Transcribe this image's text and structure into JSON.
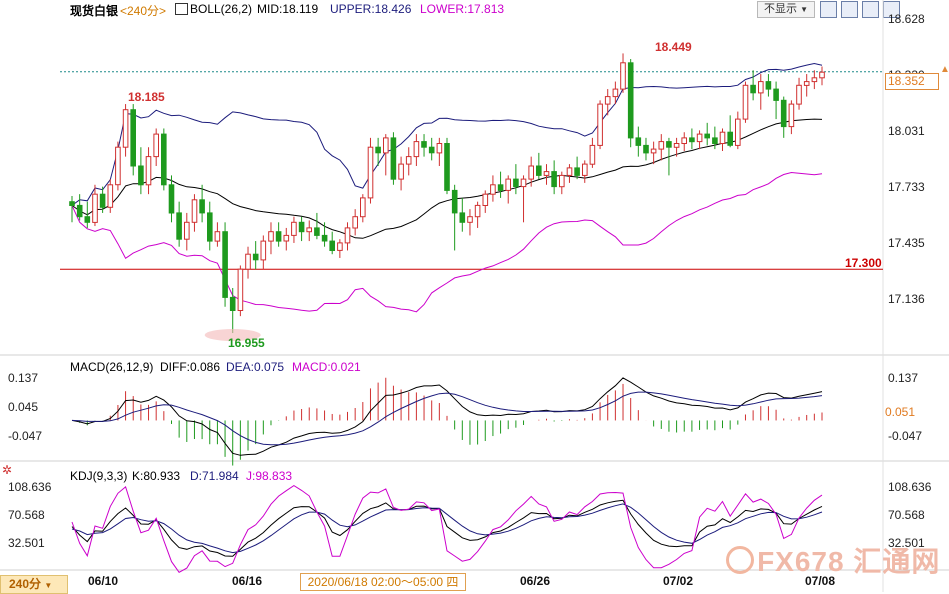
{
  "header": {
    "symbol": "现货白银",
    "period": "<240分>",
    "boll": "BOLL(26,2)",
    "mid": "MID:18.119",
    "upper": "UPPER:18.426",
    "lower": "LOWER:17.813",
    "dropdown": "不显示",
    "dropdown_arrow": "▼"
  },
  "price_axis": [
    "18.628",
    "18.330",
    "18.031",
    "17.733",
    "17.435",
    "17.136"
  ],
  "price_current": "18.352",
  "price_annotations": {
    "high1": "18.185",
    "high2": "18.449",
    "low": "16.955",
    "level": "17.300"
  },
  "macd_header": {
    "name": "MACD(26,12,9)",
    "diff": "DIFF:0.086",
    "dea": "DEA:0.075",
    "macd": "MACD:0.021"
  },
  "macd_axis": [
    "0.137",
    "0.045",
    "-0.047"
  ],
  "macd_current": "0.051",
  "kdj_header": {
    "name": "KDJ(9,3,3)",
    "k": "K:80.933",
    "d": "D:71.984",
    "j": "J:98.833"
  },
  "kdj_axis": [
    "108.636",
    "70.568",
    "32.501"
  ],
  "footer": {
    "period_tab": "240分",
    "dates": [
      "06/10",
      "06/16",
      "06/26",
      "07/02",
      "07/08"
    ],
    "cursor_time": "2020/06/18 02:00～05:00 四",
    "watermark": "FX678 汇通网"
  },
  "colors": {
    "up": "#d03030",
    "down": "#1e9a1e",
    "mid": "#000000",
    "upper": "#1c1c7c",
    "lower": "#cc00cc",
    "level": "#cc0000"
  },
  "chart_data": {
    "type": "candlestick",
    "title": "现货白银",
    "candles": [
      [
        17.66,
        17.69,
        17.55,
        17.64
      ],
      [
        17.64,
        17.7,
        17.56,
        17.58
      ],
      [
        17.58,
        17.66,
        17.52,
        17.55
      ],
      [
        17.55,
        17.75,
        17.53,
        17.7
      ],
      [
        17.7,
        17.74,
        17.6,
        17.63
      ],
      [
        17.63,
        17.78,
        17.6,
        17.75
      ],
      [
        17.75,
        17.98,
        17.72,
        17.95
      ],
      [
        17.95,
        18.18,
        17.9,
        18.15
      ],
      [
        18.15,
        18.18,
        17.8,
        17.85
      ],
      [
        17.85,
        17.95,
        17.7,
        17.75
      ],
      [
        17.75,
        17.95,
        17.7,
        17.9
      ],
      [
        17.9,
        18.05,
        17.85,
        18.02
      ],
      [
        18.02,
        18.05,
        17.72,
        17.75
      ],
      [
        17.75,
        17.8,
        17.55,
        17.6
      ],
      [
        17.6,
        17.66,
        17.42,
        17.46
      ],
      [
        17.46,
        17.6,
        17.4,
        17.55
      ],
      [
        17.55,
        17.7,
        17.5,
        17.67
      ],
      [
        17.67,
        17.75,
        17.55,
        17.6
      ],
      [
        17.6,
        17.66,
        17.4,
        17.45
      ],
      [
        17.45,
        17.55,
        17.42,
        17.5
      ],
      [
        17.5,
        17.55,
        17.1,
        17.15
      ],
      [
        17.15,
        17.2,
        16.96,
        17.08
      ],
      [
        17.08,
        17.32,
        17.05,
        17.3
      ],
      [
        17.3,
        17.42,
        17.25,
        17.38
      ],
      [
        17.38,
        17.45,
        17.3,
        17.35
      ],
      [
        17.35,
        17.48,
        17.3,
        17.45
      ],
      [
        17.45,
        17.55,
        17.38,
        17.5
      ],
      [
        17.5,
        17.55,
        17.42,
        17.45
      ],
      [
        17.45,
        17.52,
        17.4,
        17.48
      ],
      [
        17.48,
        17.58,
        17.44,
        17.55
      ],
      [
        17.55,
        17.58,
        17.45,
        17.5
      ],
      [
        17.5,
        17.56,
        17.45,
        17.52
      ],
      [
        17.52,
        17.6,
        17.46,
        17.48
      ],
      [
        17.48,
        17.55,
        17.42,
        17.45
      ],
      [
        17.45,
        17.5,
        17.38,
        17.4
      ],
      [
        17.4,
        17.46,
        17.36,
        17.44
      ],
      [
        17.44,
        17.55,
        17.4,
        17.52
      ],
      [
        17.52,
        17.62,
        17.48,
        17.58
      ],
      [
        17.58,
        17.7,
        17.55,
        17.68
      ],
      [
        17.68,
        18.0,
        17.65,
        17.95
      ],
      [
        17.95,
        18.0,
        17.85,
        17.92
      ],
      [
        17.92,
        18.02,
        17.8,
        18.0
      ],
      [
        18.0,
        18.03,
        17.75,
        17.78
      ],
      [
        17.78,
        17.9,
        17.72,
        17.86
      ],
      [
        17.86,
        17.95,
        17.8,
        17.9
      ],
      [
        17.9,
        18.02,
        17.85,
        17.98
      ],
      [
        17.98,
        18.02,
        17.9,
        17.95
      ],
      [
        17.95,
        18.0,
        17.88,
        17.92
      ],
      [
        17.92,
        18.0,
        17.85,
        17.97
      ],
      [
        17.97,
        18.0,
        17.7,
        17.72
      ],
      [
        17.72,
        17.75,
        17.4,
        17.6
      ],
      [
        17.6,
        17.68,
        17.5,
        17.55
      ],
      [
        17.55,
        17.62,
        17.48,
        17.58
      ],
      [
        17.58,
        17.66,
        17.52,
        17.64
      ],
      [
        17.64,
        17.72,
        17.6,
        17.7
      ],
      [
        17.7,
        17.8,
        17.66,
        17.75
      ],
      [
        17.75,
        17.82,
        17.68,
        17.72
      ],
      [
        17.72,
        17.8,
        17.65,
        17.78
      ],
      [
        17.78,
        17.86,
        17.7,
        17.74
      ],
      [
        17.74,
        17.8,
        17.55,
        17.78
      ],
      [
        17.78,
        17.9,
        17.74,
        17.85
      ],
      [
        17.85,
        17.92,
        17.78,
        17.8
      ],
      [
        17.8,
        17.86,
        17.75,
        17.82
      ],
      [
        17.82,
        17.88,
        17.7,
        17.74
      ],
      [
        17.74,
        17.82,
        17.7,
        17.8
      ],
      [
        17.8,
        17.86,
        17.76,
        17.84
      ],
      [
        17.84,
        17.9,
        17.78,
        17.8
      ],
      [
        17.8,
        17.88,
        17.76,
        17.86
      ],
      [
        17.86,
        18.0,
        17.84,
        17.96
      ],
      [
        17.96,
        18.2,
        17.94,
        18.18
      ],
      [
        18.18,
        18.26,
        18.12,
        18.22
      ],
      [
        18.22,
        18.3,
        18.18,
        18.26
      ],
      [
        18.26,
        18.45,
        18.24,
        18.4
      ],
      [
        18.4,
        18.42,
        17.95,
        18.0
      ],
      [
        18.0,
        18.06,
        17.9,
        17.96
      ],
      [
        17.96,
        18.0,
        17.88,
        17.92
      ],
      [
        17.92,
        17.98,
        17.86,
        17.94
      ],
      [
        17.94,
        18.02,
        17.88,
        17.98
      ],
      [
        17.98,
        18.0,
        17.8,
        17.95
      ],
      [
        17.95,
        18.0,
        17.9,
        17.97
      ],
      [
        17.97,
        18.03,
        17.93,
        18.0
      ],
      [
        18.0,
        18.05,
        17.94,
        17.98
      ],
      [
        17.98,
        18.04,
        17.94,
        18.02
      ],
      [
        18.02,
        18.08,
        17.96,
        18.0
      ],
      [
        18.0,
        18.06,
        17.94,
        17.97
      ],
      [
        17.97,
        18.05,
        17.93,
        18.03
      ],
      [
        18.03,
        18.12,
        17.95,
        17.96
      ],
      [
        17.96,
        18.14,
        17.94,
        18.1
      ],
      [
        18.1,
        18.3,
        18.08,
        18.28
      ],
      [
        18.28,
        18.36,
        18.2,
        18.24
      ],
      [
        18.24,
        18.34,
        18.15,
        18.3
      ],
      [
        18.3,
        18.34,
        18.22,
        18.26
      ],
      [
        18.26,
        18.3,
        18.1,
        18.2
      ],
      [
        18.2,
        18.22,
        18.0,
        18.06
      ],
      [
        18.06,
        18.2,
        18.02,
        18.18
      ],
      [
        18.18,
        18.32,
        18.15,
        18.28
      ],
      [
        18.28,
        18.34,
        18.22,
        18.3
      ],
      [
        18.3,
        18.36,
        18.26,
        18.32
      ],
      [
        18.32,
        18.38,
        18.28,
        18.35
      ]
    ],
    "ylim": [
      16.95,
      18.63
    ],
    "yticks": [
      18.628,
      18.33,
      18.031,
      17.733,
      17.435,
      17.136
    ],
    "hline": 17.3,
    "boll": {
      "mid": 18.119,
      "upper": 18.426,
      "lower": 17.813
    },
    "macd": {
      "diff": 0.086,
      "dea": 0.075,
      "macd": 0.021,
      "yticks": [
        0.137,
        0.045,
        -0.047
      ]
    },
    "kdj": {
      "k": 80.933,
      "d": 71.984,
      "j": 98.833,
      "yticks": [
        108.636,
        70.568,
        32.501
      ]
    },
    "x_tick_labels": [
      "06/10",
      "06/16",
      "06/26",
      "07/02",
      "07/08"
    ]
  }
}
